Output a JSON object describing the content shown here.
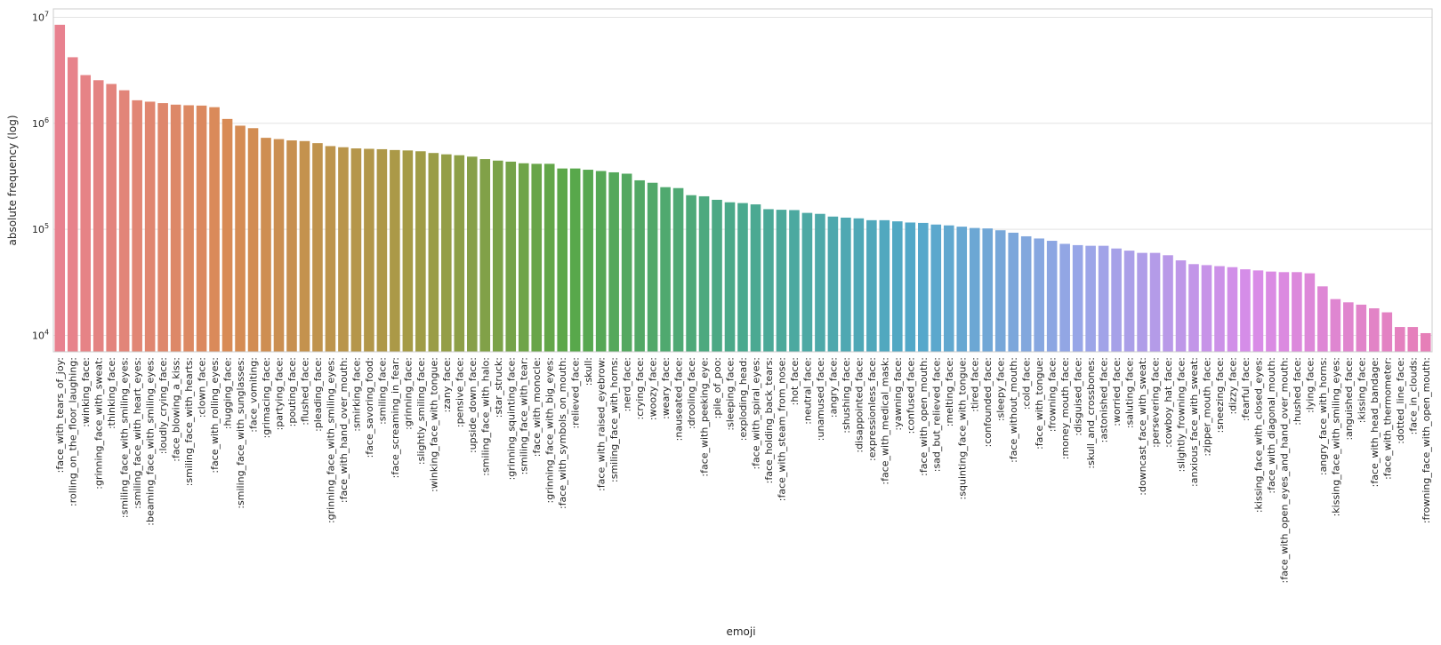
{
  "chart_data": {
    "type": "bar",
    "xlabel": "emoji",
    "ylabel": "absolute frequency (log)",
    "yscale": "log",
    "ylim": [
      7000,
      12000000
    ],
    "yticks": [
      {
        "value": 10000,
        "base": "10",
        "exp": "4"
      },
      {
        "value": 100000,
        "base": "10",
        "exp": "5"
      },
      {
        "value": 1000000,
        "base": "10",
        "exp": "6"
      },
      {
        "value": 10000000,
        "base": "10",
        "exp": "7"
      }
    ],
    "grid": true,
    "categories": [
      ":face_with_tears_of_joy:",
      ":rolling_on_the_floor_laughing:",
      ":winking_face:",
      ":grinning_face_with_sweat:",
      ":thinking_face:",
      ":smiling_face_with_smiling_eyes:",
      ":smiling_face_with_heart_eyes:",
      ":beaming_face_with_smiling_eyes:",
      ":loudly_crying_face:",
      ":face_blowing_a_kiss:",
      ":smiling_face_with_hearts:",
      ":clown_face:",
      ":face_with_rolling_eyes:",
      ":hugging_face:",
      ":smiling_face_with_sunglasses:",
      ":face_vomiting:",
      ":grimacing_face:",
      ":partying_face:",
      ":pouting_face:",
      ":flushed_face:",
      ":pleading_face:",
      ":grinning_face_with_smiling_eyes:",
      ":face_with_hand_over_mouth:",
      ":smirking_face:",
      ":face_savoring_food:",
      ":smiling_face:",
      ":face_screaming_in_fear:",
      ":grinning_face:",
      ":slightly_smiling_face:",
      ":winking_face_with_tongue:",
      ":zany_face:",
      ":pensive_face:",
      ":upside_down_face:",
      ":smiling_face_with_halo:",
      ":star_struck:",
      ":grinning_squinting_face:",
      ":smiling_face_with_tear:",
      ":face_with_monocle:",
      ":grinning_face_with_big_eyes:",
      ":face_with_symbols_on_mouth:",
      ":relieved_face:",
      ":skull:",
      ":face_with_raised_eyebrow:",
      ":smiling_face_with_horns:",
      ":nerd_face:",
      ":crying_face:",
      ":woozy_face:",
      ":weary_face:",
      ":nauseated_face:",
      ":drooling_face:",
      ":face_with_peeking_eye:",
      ":pile_of_poo:",
      ":sleeping_face:",
      ":exploding_head:",
      ":face_with_spiral_eyes:",
      ":face_holding_back_tears:",
      ":face_with_steam_from_nose:",
      ":hot_face:",
      ":neutral_face:",
      ":unamused_face:",
      ":angry_face:",
      ":shushing_face:",
      ":disappointed_face:",
      ":expressionless_face:",
      ":face_with_medical_mask:",
      ":yawning_face:",
      ":confused_face:",
      ":face_with_open_mouth:",
      ":sad_but_relieved_face:",
      ":melting_face:",
      ":squinting_face_with_tongue:",
      ":tired_face:",
      ":confounded_face:",
      ":sleepy_face:",
      ":face_without_mouth:",
      ":cold_face:",
      ":face_with_tongue:",
      ":frowning_face:",
      ":money_mouth_face:",
      ":disguised_face:",
      ":skull_and_crossbones:",
      ":astonished_face:",
      ":worried_face:",
      ":saluting_face:",
      ":downcast_face_with_sweat:",
      ":persevering_face:",
      ":cowboy_hat_face:",
      ":slightly_frowning_face:",
      ":anxious_face_with_sweat:",
      ":zipper_mouth_face:",
      ":sneezing_face:",
      ":dizzy_face:",
      ":fearful_face:",
      ":kissing_face_with_closed_eyes:",
      ":face_with_diagonal_mouth:",
      ":face_with_open_eyes_and_hand_over_mouth:",
      ":hushed_face:",
      ":lying_face:",
      ":angry_face_with_horns:",
      ":kissing_face_with_smiling_eyes:",
      ":anguished_face:",
      ":kissing_face:",
      ":face_with_head_bandage:",
      ":face_with_thermometer:",
      ":dotted_line_face:",
      ":face_in_clouds:",
      ":frowning_face_with_open_mouth:"
    ],
    "values": [
      8500000,
      4200000,
      2850000,
      2550000,
      2350000,
      2050000,
      1650000,
      1600000,
      1550000,
      1500000,
      1480000,
      1470000,
      1420000,
      1100000,
      950000,
      900000,
      730000,
      710000,
      690000,
      680000,
      650000,
      610000,
      595000,
      580000,
      575000,
      570000,
      560000,
      555000,
      545000,
      525000,
      510000,
      500000,
      485000,
      460000,
      445000,
      435000,
      420000,
      415000,
      415000,
      375000,
      375000,
      365000,
      355000,
      345000,
      335000,
      290000,
      275000,
      250000,
      245000,
      210000,
      205000,
      190000,
      180000,
      177000,
      172000,
      155000,
      153000,
      152000,
      143000,
      140000,
      132000,
      129000,
      127000,
      122000,
      122000,
      119000,
      116000,
      115000,
      111000,
      109000,
      106000,
      103000,
      102000,
      98000,
      93000,
      86000,
      82000,
      78000,
      73000,
      71000,
      70000,
      70000,
      66000,
      63000,
      60000,
      60000,
      57000,
      51000,
      47000,
      46000,
      45000,
      44000,
      42000,
      41000,
      40000,
      39500,
      39500,
      38500,
      29000,
      22000,
      20500,
      19500,
      18000,
      16500,
      12000,
      12000,
      10500
    ],
    "palette_anchors": [
      "#e8818f",
      "#d88b55",
      "#a99a46",
      "#58a84a",
      "#4aa98e",
      "#52a8c9",
      "#9aa6e8",
      "#d98ce8",
      "#e67fb8"
    ]
  }
}
